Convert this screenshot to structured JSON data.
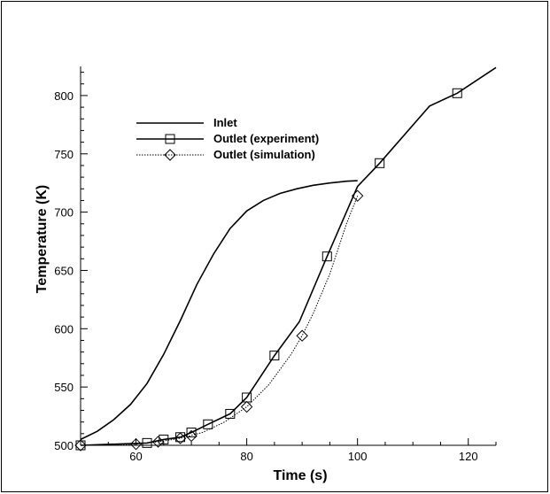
{
  "chart_data": {
    "type": "line",
    "title": "",
    "xlabel": "Time (s)",
    "ylabel": "Temperature (K)",
    "xlim": [
      50,
      125
    ],
    "ylim": [
      500,
      825
    ],
    "xticks": [
      60,
      80,
      100,
      120
    ],
    "yticks": [
      500,
      550,
      600,
      650,
      700,
      750,
      800
    ],
    "grid": false,
    "legend_position": "upper-left",
    "series": [
      {
        "name": "Inlet",
        "style": "solid",
        "marker": "none",
        "color": "#000000",
        "x": [
          50,
          53,
          56,
          59,
          62,
          65,
          68,
          71,
          74,
          77,
          80,
          83,
          86,
          89,
          92,
          95,
          98,
          100
        ],
        "y": [
          505,
          512,
          522,
          535,
          553,
          578,
          607,
          638,
          664,
          686,
          701,
          710,
          716,
          720,
          723,
          725,
          726.5,
          727
        ]
      },
      {
        "name": "Outlet (experiment)",
        "style": "solid",
        "marker": "square",
        "color": "#000000",
        "x": [
          50,
          62,
          65,
          68,
          70,
          73,
          77,
          80,
          85,
          89.5,
          94.5,
          100,
          104,
          113,
          118,
          125
        ],
        "y": [
          500,
          502,
          505,
          507,
          511,
          518,
          527,
          541,
          577,
          606,
          662,
          722,
          742,
          791,
          802,
          824
        ],
        "markers_x": [
          50,
          62,
          65,
          68,
          70,
          73,
          77,
          80,
          85,
          94.5,
          104,
          118
        ],
        "markers_y": [
          500,
          502,
          505,
          507,
          511,
          518,
          527,
          541,
          577,
          662,
          742,
          802
        ]
      },
      {
        "name": "Outlet (simulation)",
        "style": "dotted",
        "marker": "diamond",
        "color": "#000000",
        "x": [
          50,
          55,
          60,
          64,
          68,
          72,
          76,
          80,
          84,
          88,
          90,
          92,
          95,
          98,
          100
        ],
        "y": [
          500,
          500,
          501,
          503,
          506,
          511,
          520,
          533,
          552,
          578,
          594,
          613,
          647,
          690,
          714
        ],
        "markers_x": [
          50,
          60,
          64,
          68,
          70,
          80,
          90,
          100
        ],
        "markers_y": [
          500,
          501,
          503,
          506,
          508,
          533,
          594,
          714
        ]
      }
    ]
  }
}
